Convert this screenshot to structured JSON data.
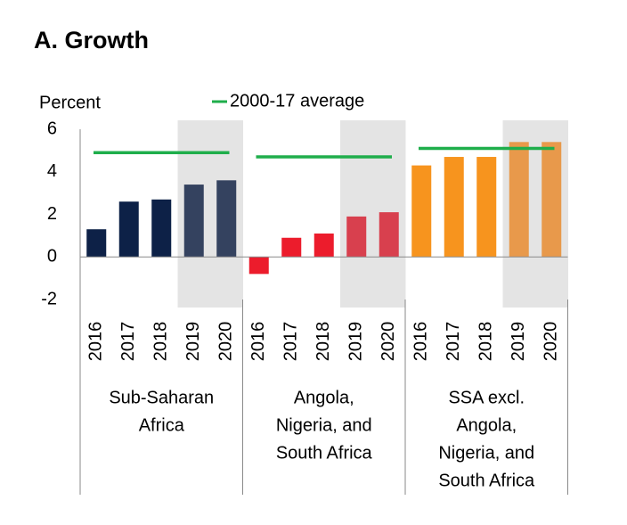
{
  "chart_data": {
    "type": "grouped-bar",
    "title": "A. Growth",
    "y_label": "Percent",
    "legend_label": "2000-17 average",
    "average_color": "#1fae4b",
    "shade_color": "#e4e4e4",
    "ylim": [
      -2,
      6
    ],
    "yticks": [
      -2,
      0,
      2,
      4,
      6
    ],
    "groups": [
      {
        "name": [
          "Sub-Saharan",
          "Africa"
        ],
        "categories": [
          "2016",
          "2017",
          "2018",
          "2019",
          "2020"
        ],
        "values": [
          1.3,
          2.6,
          2.7,
          3.4,
          3.6
        ],
        "average": 4.9,
        "shaded": [
          false,
          false,
          false,
          true,
          true
        ],
        "colors": [
          "#0d2147",
          "#0d2147",
          "#0d2147",
          "#34425f",
          "#34425f"
        ]
      },
      {
        "name": [
          "Angola,",
          "Nigeria, and",
          "South Africa"
        ],
        "categories": [
          "2016",
          "2017",
          "2018",
          "2019",
          "2020"
        ],
        "values": [
          -0.8,
          0.9,
          1.1,
          1.9,
          2.1
        ],
        "average": 4.7,
        "shaded": [
          false,
          false,
          false,
          true,
          true
        ],
        "colors": [
          "#ec1c2c",
          "#ec1c2c",
          "#ec1c2c",
          "#d8404e",
          "#d8404e"
        ]
      },
      {
        "name": [
          "SSA excl.",
          "Angola,",
          "Nigeria, and",
          "South Africa"
        ],
        "categories": [
          "2016",
          "2017",
          "2018",
          "2019",
          "2020"
        ],
        "values": [
          4.3,
          4.7,
          4.7,
          5.4,
          5.4
        ],
        "average": 5.1,
        "shaded": [
          false,
          false,
          false,
          true,
          true
        ],
        "colors": [
          "#f7941e",
          "#f7941e",
          "#f7941e",
          "#e8994b",
          "#e8994b"
        ]
      }
    ]
  }
}
